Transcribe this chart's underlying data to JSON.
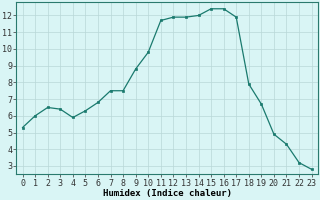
{
  "x": [
    0,
    1,
    2,
    3,
    4,
    5,
    6,
    7,
    8,
    9,
    10,
    11,
    12,
    13,
    14,
    15,
    16,
    17,
    18,
    19,
    20,
    21,
    22,
    23
  ],
  "y": [
    5.3,
    6.0,
    6.5,
    6.4,
    5.9,
    6.3,
    6.8,
    7.5,
    7.5,
    8.8,
    9.8,
    11.7,
    11.9,
    11.9,
    12.0,
    12.4,
    12.4,
    11.9,
    7.9,
    6.7,
    4.9,
    4.3,
    3.2,
    2.8
  ],
  "line_color": "#1a7a6e",
  "marker": "s",
  "markersize": 2.0,
  "linewidth": 0.9,
  "bg_color": "#d9f5f5",
  "grid_color": "#b8d8d8",
  "xlabel": "Humidex (Indice chaleur)",
  "xlabel_fontsize": 6.5,
  "tick_fontsize": 6,
  "xlim": [
    -0.5,
    23.5
  ],
  "ylim": [
    2.5,
    12.8
  ],
  "yticks": [
    3,
    4,
    5,
    6,
    7,
    8,
    9,
    10,
    11,
    12
  ],
  "xticks": [
    0,
    1,
    2,
    3,
    4,
    5,
    6,
    7,
    8,
    9,
    10,
    11,
    12,
    13,
    14,
    15,
    16,
    17,
    18,
    19,
    20,
    21,
    22,
    23
  ]
}
